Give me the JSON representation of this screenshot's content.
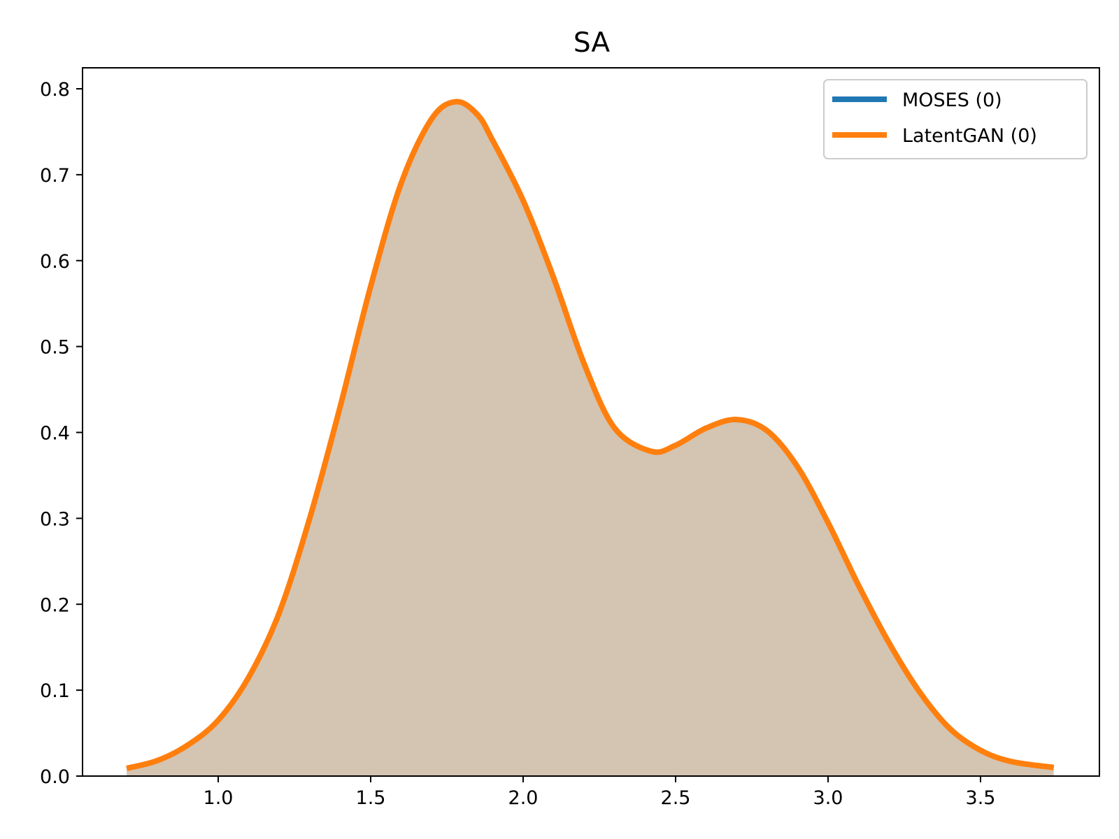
{
  "chart_data": {
    "type": "area",
    "title": "SA",
    "xlabel": "",
    "ylabel": "",
    "xlim": [
      0.55,
      3.88
    ],
    "ylim": [
      0.0,
      0.8
    ],
    "xticks": [
      "1.0",
      "1.5",
      "2.0",
      "2.5",
      "3.0",
      "3.5"
    ],
    "yticks": [
      "0.0",
      "0.1",
      "0.2",
      "0.3",
      "0.4",
      "0.5",
      "0.6",
      "0.7",
      "0.8"
    ],
    "grid": false,
    "legend_position": "top-right",
    "series": [
      {
        "name": "MOSES (0)",
        "color": "#1f77b4",
        "x": [
          0.7,
          0.8,
          0.9,
          1.0,
          1.1,
          1.2,
          1.3,
          1.4,
          1.5,
          1.6,
          1.7,
          1.78,
          1.85,
          1.9,
          2.0,
          2.1,
          2.2,
          2.3,
          2.42,
          2.5,
          2.6,
          2.7,
          2.8,
          2.9,
          3.0,
          3.1,
          3.2,
          3.3,
          3.4,
          3.5,
          3.6,
          3.74
        ],
        "y": [
          0.009,
          0.018,
          0.036,
          0.065,
          0.115,
          0.19,
          0.3,
          0.43,
          0.57,
          0.69,
          0.765,
          0.785,
          0.77,
          0.74,
          0.67,
          0.58,
          0.48,
          0.405,
          0.378,
          0.385,
          0.405,
          0.415,
          0.402,
          0.36,
          0.295,
          0.222,
          0.155,
          0.098,
          0.055,
          0.03,
          0.017,
          0.01
        ]
      },
      {
        "name": "LatentGAN (0)",
        "color": "#ff7f0e",
        "x": [
          0.7,
          0.8,
          0.9,
          1.0,
          1.1,
          1.2,
          1.3,
          1.4,
          1.5,
          1.6,
          1.7,
          1.78,
          1.85,
          1.9,
          2.0,
          2.1,
          2.2,
          2.3,
          2.42,
          2.5,
          2.6,
          2.7,
          2.8,
          2.9,
          3.0,
          3.1,
          3.2,
          3.3,
          3.4,
          3.5,
          3.6,
          3.74
        ],
        "y": [
          0.009,
          0.018,
          0.036,
          0.065,
          0.115,
          0.19,
          0.3,
          0.43,
          0.57,
          0.69,
          0.765,
          0.785,
          0.77,
          0.74,
          0.67,
          0.58,
          0.48,
          0.405,
          0.378,
          0.385,
          0.405,
          0.415,
          0.402,
          0.36,
          0.295,
          0.222,
          0.155,
          0.098,
          0.055,
          0.03,
          0.017,
          0.01
        ]
      }
    ],
    "fill_color": "#d4c4b2"
  }
}
